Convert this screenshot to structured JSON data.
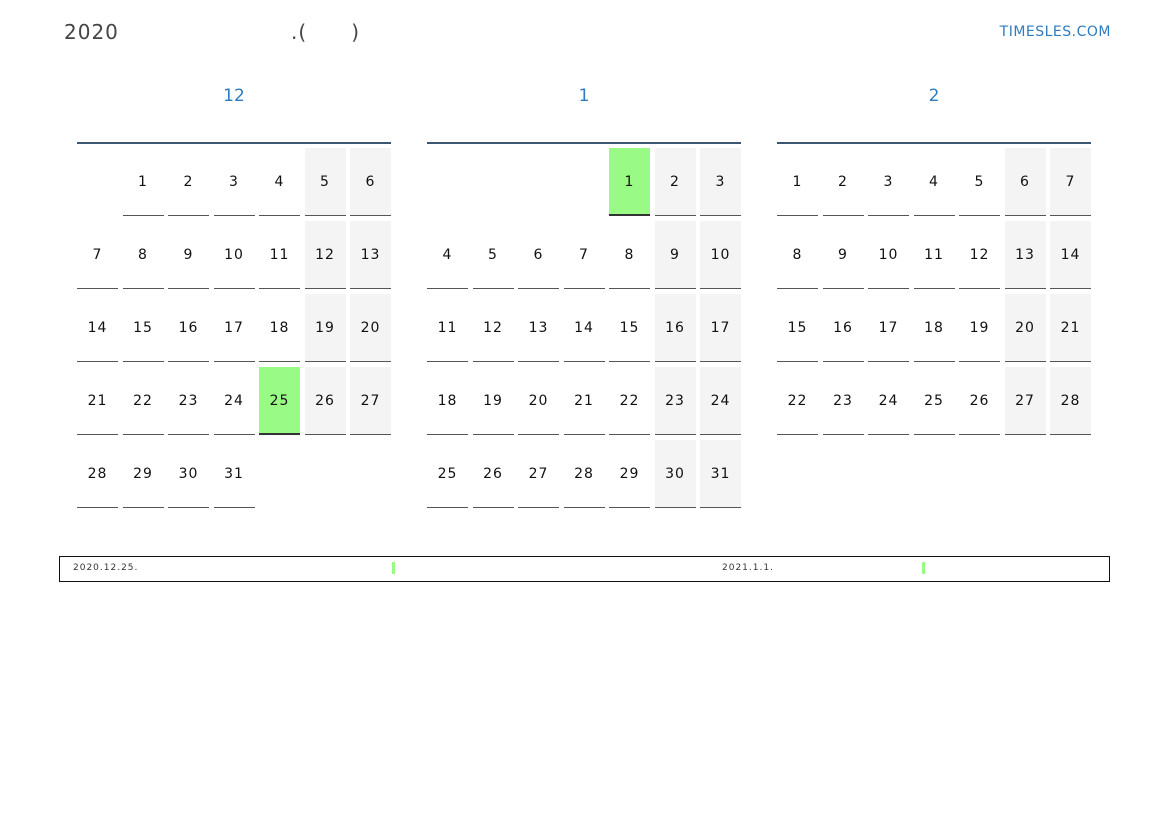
{
  "header": {
    "title": "2020",
    "subtitle": ".(      )",
    "site": "TIMESLES.COM"
  },
  "colors": {
    "highlight": "#99fa85",
    "weekend": "#f4f4f4",
    "accent": "#2f7bbf"
  },
  "months": [
    {
      "name": "12",
      "first_weekday_monday_based": 1,
      "days": 31,
      "highlight": [
        25
      ]
    },
    {
      "name": "1",
      "first_weekday_monday_based": 4,
      "days": 31,
      "highlight": [
        1
      ]
    },
    {
      "name": "2",
      "first_weekday_monday_based": 0,
      "days": 28,
      "highlight": []
    }
  ],
  "notes": [
    {
      "date": "2020.12.25."
    },
    {
      "date": "2021.1.1."
    }
  ]
}
